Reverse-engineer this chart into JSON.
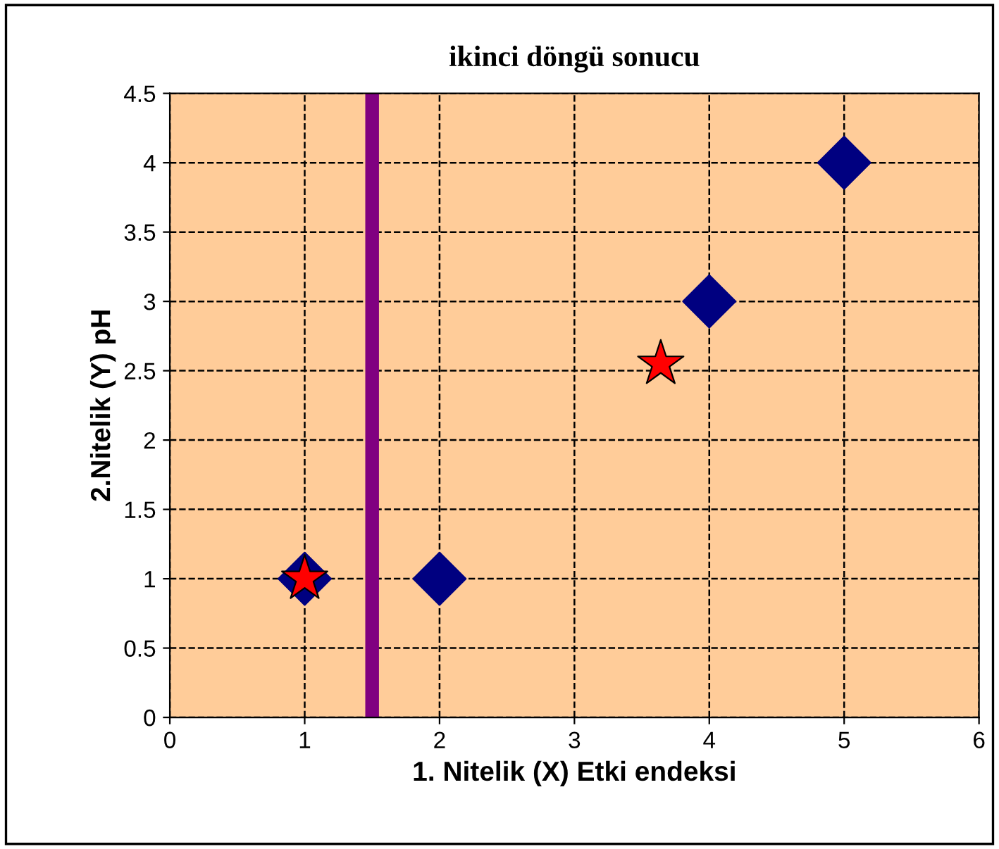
{
  "chart_data": {
    "type": "scatter",
    "title": "ikinci döngü sonucu",
    "xlabel": "1. Nitelik (X) Etki endeksi",
    "ylabel": "2.Nitelik (Y) pH",
    "series": [
      {
        "color": "#000080",
        "marker": "diamond",
        "x": [
          1,
          2,
          4,
          5
        ],
        "values": [
          1,
          1,
          3,
          4
        ]
      },
      {
        "color": "#ff0000",
        "marker": "star",
        "x": [
          1,
          3.64
        ],
        "values": [
          1,
          2.55
        ]
      }
    ],
    "ref_lines": [
      {
        "axis": "x",
        "value": 1.5,
        "color": "#800080"
      }
    ],
    "xlim": [
      0,
      6
    ],
    "ylim": [
      0,
      4.5
    ],
    "xticks": [
      0,
      1,
      2,
      3,
      4,
      5,
      6
    ],
    "yticks": [
      0,
      0.5,
      1,
      1.5,
      2,
      2.5,
      3,
      3.5,
      4,
      4.5
    ],
    "grid": true,
    "line_style": "dashed"
  }
}
